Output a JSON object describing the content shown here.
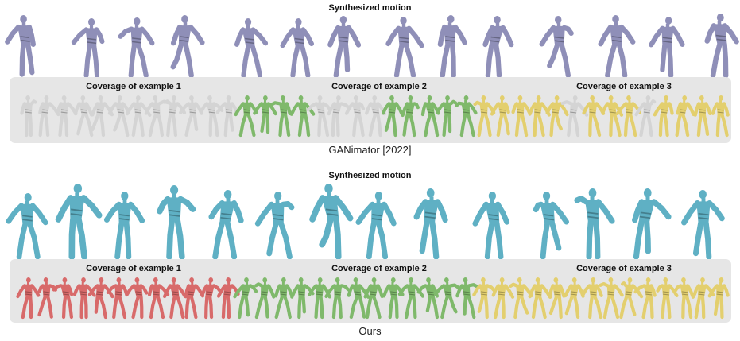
{
  "top": {
    "title": "Synthesized motion",
    "coverage_labels": [
      "Coverage of example 1",
      "Coverage of example 2",
      "Coverage of example 3"
    ],
    "caption": "GANimator [2022]",
    "motion_color": "#8f8fb8",
    "coverage_colors": [
      "#d4d4d4",
      "#7fb96b",
      "#e3cf6e"
    ],
    "coverage_pattern": [
      "gray",
      "gray",
      "gray",
      "gray",
      "gray",
      "gray",
      "gray",
      "gray",
      "gray",
      "gray",
      "gray",
      "gray",
      "green",
      "green",
      "green",
      "green",
      "gray",
      "gray",
      "gray",
      "gray",
      "green",
      "green",
      "green",
      "green",
      "green",
      "yellow",
      "yellow",
      "yellow",
      "yellow",
      "yellow",
      "gray",
      "yellow",
      "yellow",
      "yellow",
      "gray",
      "yellow",
      "yellow",
      "yellow",
      "yellow"
    ]
  },
  "bottom": {
    "title": "Synthesized motion",
    "coverage_labels": [
      "Coverage of example 1",
      "Coverage of example 2",
      "Coverage of example 3"
    ],
    "caption": "Ours",
    "motion_color": "#5fb0c4",
    "coverage_colors": [
      "#d86a6a",
      "#7fb96b",
      "#e3cf6e"
    ],
    "coverage_pattern": [
      "red",
      "red",
      "red",
      "red",
      "red",
      "red",
      "red",
      "red",
      "red",
      "red",
      "red",
      "red",
      "green",
      "green",
      "green",
      "green",
      "green",
      "green",
      "green",
      "green",
      "green",
      "green",
      "green",
      "green",
      "green",
      "yellow",
      "yellow",
      "yellow",
      "yellow",
      "yellow",
      "yellow",
      "yellow",
      "yellow",
      "yellow",
      "yellow",
      "yellow",
      "yellow",
      "yellow",
      "yellow"
    ]
  }
}
